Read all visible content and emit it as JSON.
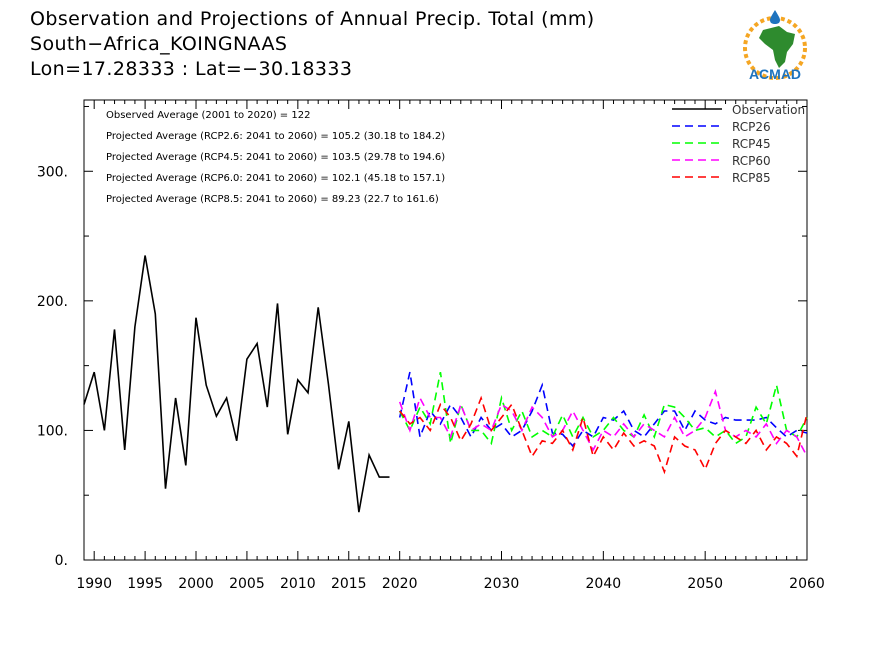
{
  "header": {
    "title_line1": "Observation and Projections of Annual Precip. Total (mm)",
    "title_line2": "South−Africa_KOINGNAAS",
    "title_line3": "Lon=17.28333 : Lat=−30.18333"
  },
  "logo": {
    "text": "ACMAD"
  },
  "chart_data": {
    "type": "line",
    "xlim": [
      1989,
      2060
    ],
    "ylim": [
      0,
      355
    ],
    "x_ticks": [
      1990,
      1995,
      2000,
      2005,
      2010,
      2015,
      2020,
      2030,
      2040,
      2050,
      2060
    ],
    "y_ticks": [
      0,
      100,
      200,
      300
    ],
    "y_tick_labels": [
      "0.",
      "100.",
      "200.",
      "300."
    ],
    "annotations": [
      "Observed Average (2001 to 2020) = 122",
      "Projected Average (RCP2.6: 2041 to 2060) = 105.2 (30.18 to 184.2)",
      "Projected Average (RCP4.5: 2041 to 2060) = 103.5 (29.78 to 194.6)",
      "Projected Average (RCP6.0: 2041 to 2060) = 102.1 (45.18 to 157.1)",
      "Projected Average (RCP8.5: 2041 to 2060) = 89.23 (22.7 to 161.6)"
    ],
    "legend_position": "top-right",
    "series": [
      {
        "name": "Observation",
        "color": "#000000",
        "dash": false,
        "x": [
          1989,
          1990,
          1991,
          1992,
          1993,
          1994,
          1995,
          1996,
          1997,
          1998,
          1999,
          2000,
          2001,
          2002,
          2003,
          2004,
          2005,
          2006,
          2007,
          2008,
          2009,
          2010,
          2011,
          2012,
          2013,
          2014,
          2015,
          2016,
          2017,
          2018,
          2019
        ],
        "values": [
          120,
          145,
          100,
          178,
          85,
          180,
          235,
          190,
          55,
          125,
          73,
          187,
          135,
          111,
          125,
          92,
          155,
          167,
          118,
          198,
          97,
          139,
          129,
          195,
          136,
          70,
          107,
          37,
          81,
          64,
          64
        ]
      },
      {
        "name": "RCP26",
        "color": "#0000ff",
        "dash": true,
        "x": [
          2020,
          2021,
          2022,
          2023,
          2024,
          2025,
          2026,
          2027,
          2028,
          2029,
          2030,
          2031,
          2032,
          2033,
          2034,
          2035,
          2036,
          2037,
          2038,
          2039,
          2040,
          2041,
          2042,
          2043,
          2044,
          2045,
          2046,
          2047,
          2048,
          2049,
          2050,
          2051,
          2052,
          2053,
          2054,
          2055,
          2056,
          2057,
          2058,
          2059,
          2060
        ],
        "values": [
          110,
          145,
          95,
          115,
          105,
          120,
          110,
          95,
          110,
          100,
          105,
          95,
          100,
          115,
          135,
          98,
          97,
          88,
          100,
          95,
          110,
          108,
          115,
          100,
          95,
          105,
          115,
          115,
          100,
          115,
          108,
          105,
          110,
          108,
          108,
          108,
          110,
          102,
          95,
          100,
          98
        ]
      },
      {
        "name": "RCP45",
        "color": "#00ff00",
        "dash": true,
        "x": [
          2020,
          2021,
          2022,
          2023,
          2024,
          2025,
          2026,
          2027,
          2028,
          2029,
          2030,
          2031,
          2032,
          2033,
          2034,
          2035,
          2036,
          2037,
          2038,
          2039,
          2040,
          2041,
          2042,
          2043,
          2044,
          2045,
          2046,
          2047,
          2048,
          2049,
          2050,
          2051,
          2052,
          2053,
          2054,
          2055,
          2056,
          2057,
          2058,
          2059,
          2060
        ],
        "values": [
          115,
          100,
          118,
          105,
          145,
          90,
          120,
          100,
          100,
          90,
          125,
          100,
          115,
          95,
          100,
          95,
          112,
          95,
          110,
          95,
          100,
          110,
          100,
          95,
          112,
          95,
          120,
          118,
          110,
          100,
          102,
          95,
          100,
          90,
          95,
          118,
          105,
          135,
          100,
          95,
          110
        ]
      },
      {
        "name": "RCP60",
        "color": "#ff00ff",
        "dash": true,
        "x": [
          2020,
          2021,
          2022,
          2023,
          2024,
          2025,
          2026,
          2027,
          2028,
          2029,
          2030,
          2031,
          2032,
          2033,
          2034,
          2035,
          2036,
          2037,
          2038,
          2039,
          2040,
          2041,
          2042,
          2043,
          2044,
          2045,
          2046,
          2047,
          2048,
          2049,
          2050,
          2051,
          2052,
          2053,
          2054,
          2055,
          2056,
          2057,
          2058,
          2059,
          2060
        ],
        "values": [
          122,
          100,
          125,
          110,
          110,
          95,
          120,
          100,
          105,
          100,
          120,
          115,
          100,
          118,
          110,
          95,
          100,
          115,
          100,
          85,
          100,
          95,
          105,
          95,
          105,
          100,
          95,
          110,
          95,
          100,
          110,
          130,
          100,
          95,
          100,
          95,
          105,
          90,
          100,
          95,
          80
        ]
      },
      {
        "name": "RCP85",
        "color": "#ff0000",
        "dash": true,
        "x": [
          2020,
          2021,
          2022,
          2023,
          2024,
          2025,
          2026,
          2027,
          2028,
          2029,
          2030,
          2031,
          2032,
          2033,
          2034,
          2035,
          2036,
          2037,
          2038,
          2039,
          2040,
          2041,
          2042,
          2043,
          2044,
          2045,
          2046,
          2047,
          2048,
          2049,
          2050,
          2051,
          2052,
          2053,
          2054,
          2055,
          2056,
          2057,
          2058,
          2059,
          2060
        ],
        "values": [
          115,
          105,
          110,
          100,
          120,
          110,
          92,
          105,
          125,
          100,
          110,
          120,
          100,
          80,
          92,
          90,
          100,
          85,
          110,
          80,
          95,
          85,
          98,
          88,
          92,
          88,
          68,
          95,
          88,
          85,
          70,
          90,
          100,
          95,
          90,
          100,
          85,
          95,
          90,
          80,
          113
        ]
      }
    ]
  }
}
